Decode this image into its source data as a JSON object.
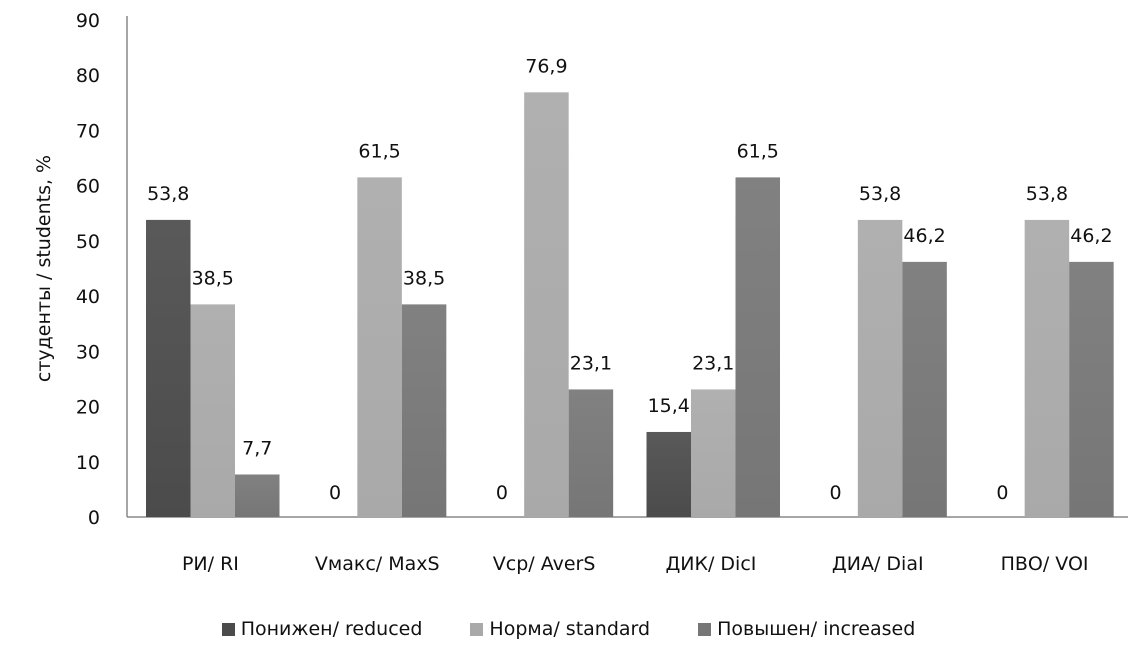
{
  "chart_data": {
    "type": "bar",
    "title": "",
    "xlabel": "",
    "ylabel": "студенты / students, %",
    "ylim": [
      0,
      90
    ],
    "yticks": [
      0,
      10,
      20,
      30,
      40,
      50,
      60,
      70,
      80,
      90
    ],
    "grid": false,
    "legend_position": "bottom",
    "categories": [
      "РИ/ RI",
      "Vмакс/ MaxS",
      "Vср/ AverS",
      "ДИК/ DicI",
      "ДИА/ DiaI",
      "ПВО/ VOI"
    ],
    "series": [
      {
        "name": "Понижен/ reduced",
        "color": "#4b4b4b",
        "values": [
          53.8,
          0,
          0,
          15.4,
          0,
          0
        ],
        "labels": [
          "53,8",
          "0",
          "0",
          "15,4",
          "0",
          "0"
        ]
      },
      {
        "name": "Норма/ standard",
        "color": "#a9a9a9",
        "values": [
          38.5,
          61.5,
          76.9,
          23.1,
          53.8,
          53.8
        ],
        "labels": [
          "38,5",
          "61,5",
          "76,9",
          "23,1",
          "53,8",
          "53,8"
        ]
      },
      {
        "name": "Повышен/ increased",
        "color": "#767676",
        "values": [
          7.7,
          38.5,
          23.1,
          61.5,
          46.2,
          46.2
        ],
        "labels": [
          "7,7",
          "38,5",
          "23,1",
          "61,5",
          "46,2",
          "46,2"
        ]
      }
    ]
  }
}
